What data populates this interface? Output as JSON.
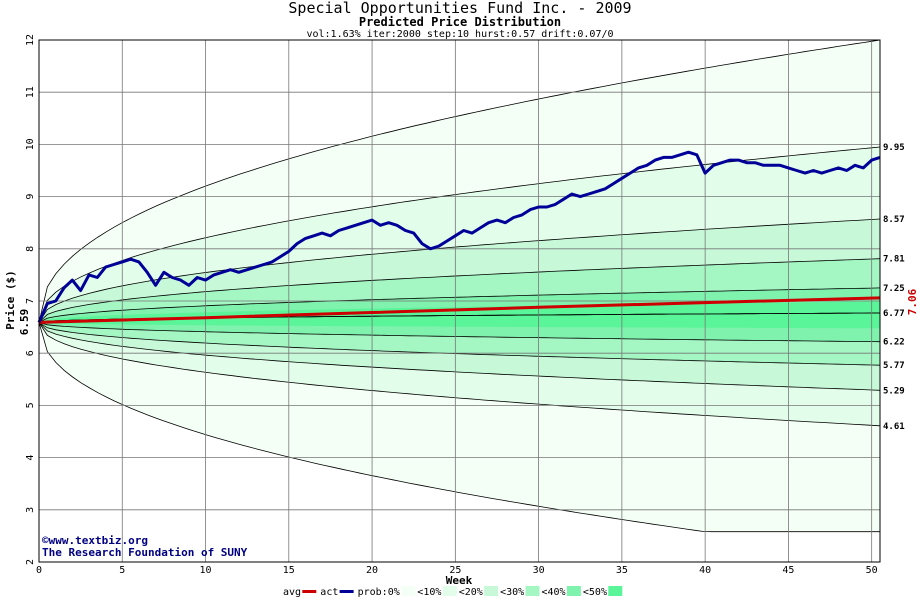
{
  "chart_data": {
    "type": "area",
    "title": "Special Opportunities Fund Inc. - 2009",
    "subtitle": "Predicted Price Distribution",
    "params": "vol:1.63% iter:2000 step:10 hurst:0.57 drift:0.07/0",
    "xlabel": "Week",
    "ylabel": "Price ($)",
    "xlim": [
      0,
      50.5
    ],
    "ylim": [
      2,
      12
    ],
    "x_ticks": [
      0,
      5,
      10,
      15,
      20,
      25,
      30,
      35,
      40,
      45,
      50
    ],
    "y_ticks": [
      2,
      3,
      4,
      5,
      6,
      7,
      8,
      9,
      10,
      11,
      12
    ],
    "grid": true,
    "start_value": "6.59",
    "end_value": "7.06",
    "start_price": 6.59,
    "bands": [
      {
        "name": "0%",
        "upper_end": 12.0,
        "lower_end": 2.58,
        "color": "#f4fff6"
      },
      {
        "name": "<10%",
        "upper_end": 9.95,
        "lower_end": 4.61,
        "color": "#e2fde9"
      },
      {
        "name": "<20%",
        "upper_end": 8.57,
        "lower_end": 5.29,
        "color": "#c7f9d8"
      },
      {
        "name": "<30%",
        "upper_end": 7.81,
        "lower_end": 5.77,
        "color": "#a4f6c3"
      },
      {
        "name": "<40%",
        "upper_end": 7.25,
        "lower_end": 6.22,
        "color": "#7ff2ad"
      },
      {
        "name": "<50%",
        "upper_end": 6.77,
        "lower_end": 6.77,
        "color": "#5af598"
      }
    ],
    "band_end_labels": [
      "9.95",
      "8.57",
      "7.81",
      "7.25",
      "6.77",
      "6.22",
      "5.77",
      "5.29",
      "4.61"
    ],
    "avg_series": {
      "name": "avg",
      "x": [
        0,
        10,
        20,
        30,
        40,
        50.5
      ],
      "y": [
        6.59,
        6.68,
        6.78,
        6.88,
        6.97,
        7.06
      ],
      "color": "#cc0000"
    },
    "act_series": {
      "name": "act",
      "color": "#000099",
      "x": [
        0,
        0.5,
        1,
        1.5,
        2,
        2.5,
        3,
        3.5,
        4,
        4.5,
        5,
        5.5,
        6,
        6.5,
        7,
        7.5,
        8,
        8.5,
        9,
        9.5,
        10,
        10.5,
        11,
        11.5,
        12,
        12.5,
        13,
        13.5,
        14,
        14.5,
        15,
        15.5,
        16,
        16.5,
        17,
        17.5,
        18,
        18.5,
        19,
        19.5,
        20,
        20.5,
        21,
        21.5,
        22,
        22.5,
        23,
        23.5,
        24,
        24.5,
        25,
        25.5,
        26,
        26.5,
        27,
        27.5,
        28,
        28.5,
        29,
        29.5,
        30,
        30.5,
        31,
        31.5,
        32,
        32.5,
        33,
        33.5,
        34,
        34.5,
        35,
        35.5,
        36,
        36.5,
        37,
        37.5,
        38,
        38.5,
        39,
        39.5,
        40,
        40.5,
        41,
        41.5,
        42,
        42.5,
        43,
        43.5,
        44,
        44.5,
        45,
        45.5,
        46,
        46.5,
        47,
        47.5,
        48,
        48.5,
        49,
        49.5,
        50,
        50.5
      ],
      "y": [
        6.59,
        6.95,
        7.0,
        7.25,
        7.4,
        7.2,
        7.5,
        7.45,
        7.65,
        7.7,
        7.75,
        7.8,
        7.75,
        7.55,
        7.3,
        7.55,
        7.45,
        7.4,
        7.3,
        7.45,
        7.4,
        7.5,
        7.55,
        7.6,
        7.55,
        7.6,
        7.65,
        7.7,
        7.75,
        7.85,
        7.95,
        8.1,
        8.2,
        8.25,
        8.3,
        8.25,
        8.35,
        8.4,
        8.45,
        8.5,
        8.55,
        8.45,
        8.5,
        8.45,
        8.35,
        8.3,
        8.1,
        8.0,
        8.05,
        8.15,
        8.25,
        8.35,
        8.3,
        8.4,
        8.5,
        8.55,
        8.5,
        8.6,
        8.65,
        8.75,
        8.8,
        8.8,
        8.85,
        8.95,
        9.05,
        9.0,
        9.05,
        9.1,
        9.15,
        9.25,
        9.35,
        9.45,
        9.55,
        9.6,
        9.7,
        9.75,
        9.75,
        9.8,
        9.85,
        9.8,
        9.45,
        9.6,
        9.65,
        9.7,
        9.7,
        9.65,
        9.65,
        9.6,
        9.6,
        9.6,
        9.55,
        9.5,
        9.45,
        9.5,
        9.45,
        9.5,
        9.55,
        9.5,
        9.6,
        9.55,
        9.7,
        9.75
      ]
    },
    "legend": [
      {
        "label": "avg",
        "kind": "line",
        "color": "#cc0000"
      },
      {
        "label": "act",
        "kind": "line",
        "color": "#000099"
      },
      {
        "label": "prob:0%",
        "kind": "box",
        "color": "#f4fff6"
      },
      {
        "label": "<10%",
        "kind": "box",
        "color": "#e2fde9"
      },
      {
        "label": "<20%",
        "kind": "box",
        "color": "#c7f9d8"
      },
      {
        "label": "<30%",
        "kind": "box",
        "color": "#a4f6c3"
      },
      {
        "label": "<40%",
        "kind": "box",
        "color": "#7ff2ad"
      },
      {
        "label": "<50%",
        "kind": "box",
        "color": "#5af598"
      }
    ],
    "legend_position": "bottom",
    "credit_line1": "©www.textbiz.org",
    "credit_line2": "The Research Foundation of SUNY"
  }
}
